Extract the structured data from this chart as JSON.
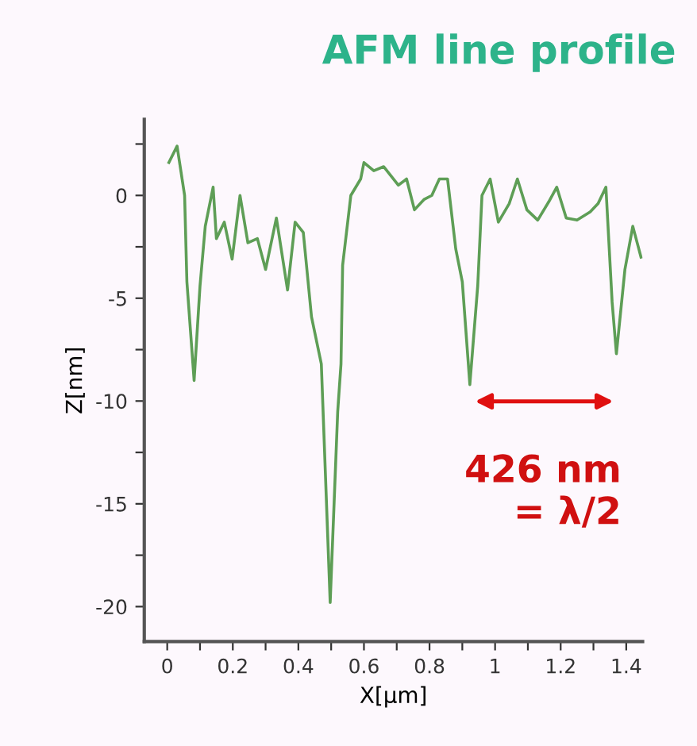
{
  "chart_data": {
    "type": "line",
    "title": "AFM line profile",
    "xlabel": "X[µm]",
    "ylabel": "Z[nm]",
    "x": [
      0.005,
      0.03,
      0.053,
      0.06,
      0.082,
      0.1,
      0.116,
      0.14,
      0.15,
      0.174,
      0.198,
      0.222,
      0.246,
      0.275,
      0.3,
      0.333,
      0.367,
      0.39,
      0.415,
      0.44,
      0.47,
      0.497,
      0.52,
      0.53,
      0.535,
      0.56,
      0.59,
      0.6,
      0.63,
      0.66,
      0.705,
      0.73,
      0.754,
      0.783,
      0.807,
      0.83,
      0.855,
      0.88,
      0.9,
      0.923,
      0.947,
      0.96,
      0.985,
      1.01,
      1.043,
      1.068,
      1.097,
      1.13,
      1.164,
      1.188,
      1.217,
      1.25,
      1.29,
      1.314,
      1.338,
      1.357,
      1.37,
      1.396,
      1.42,
      1.445
    ],
    "series": [
      {
        "color": "#5e9e56",
        "values": [
          1.6,
          2.4,
          0,
          -4.2,
          -9,
          -4.4,
          -1.5,
          0.4,
          -2.1,
          -1.3,
          -3.1,
          0,
          -2.3,
          -2.1,
          -3.6,
          -1.1,
          -4.6,
          -1.3,
          -1.8,
          -5.9,
          -8.2,
          -19.8,
          -10.5,
          -8.2,
          -3.4,
          0,
          0.8,
          1.6,
          1.2,
          1.4,
          0.5,
          0.8,
          -0.7,
          -0.2,
          0,
          0.8,
          0.8,
          -2.6,
          -4.2,
          -9.2,
          -4.4,
          0,
          0.8,
          -1.3,
          -0.4,
          0.8,
          -0.7,
          -1.2,
          -0.3,
          0.4,
          -1.1,
          -1.2,
          -0.8,
          -0.4,
          0.4,
          -5.2,
          -7.7,
          -3.6,
          -1.5,
          -3.0
        ]
      }
    ],
    "xlim": [
      -0.07,
      1.45
    ],
    "ylim": [
      -21.7,
      3.7
    ],
    "xticks": [
      0,
      {
        "value": 0.1,
        "label": null
      },
      {
        "value": 0.2,
        "label": "0.2"
      },
      {
        "value": 0.3,
        "label": null
      },
      {
        "value": 0.4,
        "label": "0.4"
      },
      {
        "value": 0.5,
        "label": null
      },
      {
        "value": 0.6,
        "label": "0.6"
      },
      {
        "value": 0.7,
        "label": null
      },
      {
        "value": 0.8,
        "label": "0.8"
      },
      {
        "value": 0.9,
        "label": null
      },
      1,
      {
        "value": 1.1,
        "label": null
      },
      {
        "value": 1.2,
        "label": "1.2"
      },
      {
        "value": 1.3,
        "label": null
      },
      {
        "value": 1.4,
        "label": "1.4"
      }
    ],
    "yticks": [
      {
        "value": 2.5,
        "label": null
      },
      0,
      {
        "value": -2.5,
        "label": null
      },
      -5,
      {
        "value": -7.5,
        "label": null
      },
      -10,
      {
        "value": -12.5,
        "label": null
      },
      -15,
      {
        "value": -17.5,
        "label": null
      },
      -20
    ],
    "annotations": [
      "426 nm\n= λ/2"
    ],
    "grid": false,
    "legend": false,
    "marker": "none",
    "line_style": "solid"
  }
}
